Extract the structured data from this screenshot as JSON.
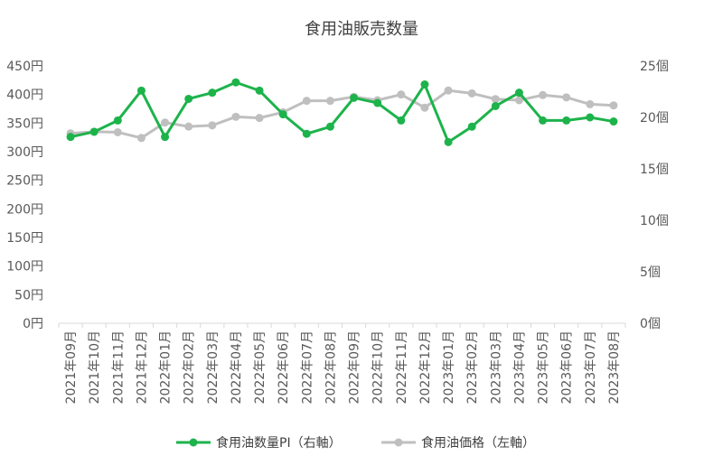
{
  "chart_data": {
    "type": "line",
    "title": "食用油販売数量",
    "categories": [
      "2021年09月",
      "2021年10月",
      "2021年11月",
      "2021年12月",
      "2022年01月",
      "2022年02月",
      "2022年03月",
      "2022年04月",
      "2022年05月",
      "2022年06月",
      "2022年07月",
      "2022年08月",
      "2022年09月",
      "2022年10月",
      "2022年11月",
      "2022年12月",
      "2023年01月",
      "2023年02月",
      "2023年03月",
      "2023年04月",
      "2023年05月",
      "2023年06月",
      "2023年07月",
      "2023年08月"
    ],
    "left_axis": {
      "ylim": [
        0,
        450
      ],
      "ticks": [
        0,
        50,
        100,
        150,
        200,
        250,
        300,
        350,
        400,
        450
      ],
      "tick_labels": [
        "0円",
        "50円",
        "100円",
        "150円",
        "200円",
        "250円",
        "300円",
        "350円",
        "400円",
        "450円"
      ]
    },
    "right_axis": {
      "ylim": [
        0,
        25
      ],
      "ticks": [
        0,
        5,
        10,
        15,
        20,
        25
      ],
      "tick_labels": [
        "0個",
        "5個",
        "10個",
        "15個",
        "20個",
        "25個"
      ]
    },
    "series": [
      {
        "name": "食用油数量PI（右軸）",
        "axis": "right",
        "color": "#1db34b",
        "values": [
          18.1,
          18.6,
          19.7,
          22.6,
          18.1,
          21.8,
          22.4,
          23.4,
          22.6,
          20.3,
          18.4,
          19.1,
          21.9,
          21.4,
          19.7,
          23.2,
          17.6,
          19.1,
          21.1,
          22.4,
          19.7,
          19.7,
          20.0,
          19.6
        ]
      },
      {
        "name": "食用油価格（左軸）",
        "axis": "left",
        "color": "#bfbfbf",
        "values": [
          332,
          335,
          334,
          324,
          351,
          344,
          346,
          361,
          359,
          369,
          389,
          389,
          396,
          390,
          400,
          377,
          407,
          402,
          392,
          390,
          399,
          395,
          383,
          381
        ]
      }
    ],
    "grid": false,
    "legend_position": "bottom"
  }
}
